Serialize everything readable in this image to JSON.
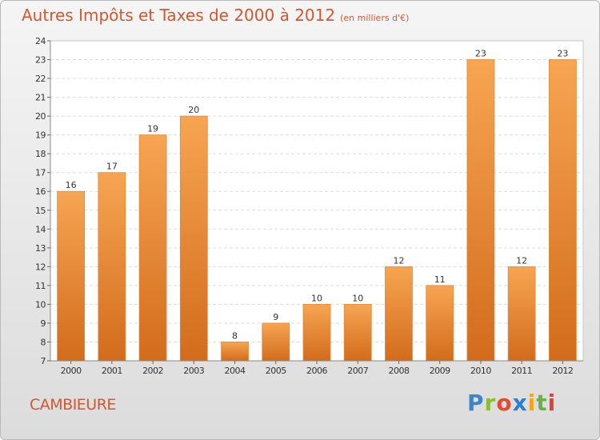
{
  "header": {
    "title": "Autres Impôts et Taxes de 2000 à 2012",
    "subtitle": "(en milliers d'€)"
  },
  "footer": {
    "location": "CAMBIEURE",
    "brand_letters": [
      "P",
      "r",
      "o",
      "x",
      "i",
      "t",
      "i"
    ],
    "brand_colors": [
      "#3a86c8",
      "#8bbf2e",
      "#e34a2f",
      "#2f7cd0",
      "#f0a420",
      "#6ab04c",
      "#e0413a"
    ]
  },
  "chart_data": {
    "type": "bar",
    "title": "Autres Impôts et Taxes de 2000 à 2012",
    "subtitle": "(en milliers d'€)",
    "categories": [
      "2000",
      "2001",
      "2002",
      "2003",
      "2004",
      "2005",
      "2006",
      "2007",
      "2008",
      "2009",
      "2010",
      "2011",
      "2012"
    ],
    "values": [
      16,
      17,
      19,
      20,
      8,
      9,
      10,
      10,
      12,
      11,
      23,
      12,
      23
    ],
    "ylim": [
      7,
      24
    ],
    "yticks": [
      7,
      8,
      9,
      10,
      11,
      12,
      13,
      14,
      15,
      16,
      17,
      18,
      19,
      20,
      21,
      22,
      23,
      24
    ],
    "grid": true,
    "bar_color_top": "#f7a552",
    "bar_color_bottom": "#d26c1c",
    "data_labels": true
  }
}
